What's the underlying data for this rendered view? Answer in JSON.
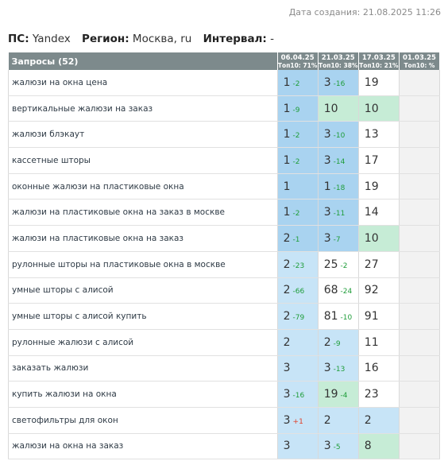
{
  "created_label": "Дата создания: 21.08.2025 11:26",
  "meta": {
    "ps_label": "ПС:",
    "ps_value": "Yandex",
    "region_label": "Регион:",
    "region_value": "Москва, ru",
    "interval_label": "Интервал:",
    "interval_value": "-"
  },
  "table": {
    "query_header": "Запросы (52)",
    "columns": [
      {
        "date": "06.04.25",
        "top10": "Топ10: 71%"
      },
      {
        "date": "21.03.25",
        "top10": "Топ10: 38%"
      },
      {
        "date": "17.03.25",
        "top10": "Топ10: 21%"
      },
      {
        "date": "01.03.25",
        "top10": "Топ10: %"
      }
    ],
    "rows": [
      {
        "query": "жалюзи на окна цена",
        "cells": [
          {
            "pos": "1",
            "change": "-2",
            "dir": "up",
            "bg": "b1"
          },
          {
            "pos": "3",
            "change": "-16",
            "dir": "up",
            "bg": "b1"
          },
          {
            "pos": "19",
            "change": "",
            "dir": "",
            "bg": "n"
          },
          {
            "pos": "",
            "change": "",
            "dir": "",
            "bg": "e"
          }
        ]
      },
      {
        "query": "вертикальные жалюзи на заказ",
        "cells": [
          {
            "pos": "1",
            "change": "-9",
            "dir": "up",
            "bg": "b1"
          },
          {
            "pos": "10",
            "change": "",
            "dir": "",
            "bg": "g"
          },
          {
            "pos": "10",
            "change": "",
            "dir": "",
            "bg": "g"
          },
          {
            "pos": "",
            "change": "",
            "dir": "",
            "bg": "e"
          }
        ]
      },
      {
        "query": "жалюзи блэкаут",
        "cells": [
          {
            "pos": "1",
            "change": "-2",
            "dir": "up",
            "bg": "b1"
          },
          {
            "pos": "3",
            "change": "-10",
            "dir": "up",
            "bg": "b1"
          },
          {
            "pos": "13",
            "change": "",
            "dir": "",
            "bg": "n"
          },
          {
            "pos": "",
            "change": "",
            "dir": "",
            "bg": "e"
          }
        ]
      },
      {
        "query": "кассетные шторы",
        "cells": [
          {
            "pos": "1",
            "change": "-2",
            "dir": "up",
            "bg": "b1"
          },
          {
            "pos": "3",
            "change": "-14",
            "dir": "up",
            "bg": "b1"
          },
          {
            "pos": "17",
            "change": "",
            "dir": "",
            "bg": "n"
          },
          {
            "pos": "",
            "change": "",
            "dir": "",
            "bg": "e"
          }
        ]
      },
      {
        "query": "оконные жалюзи на пластиковые окна",
        "cells": [
          {
            "pos": "1",
            "change": "",
            "dir": "",
            "bg": "b1"
          },
          {
            "pos": "1",
            "change": "-18",
            "dir": "up",
            "bg": "b1"
          },
          {
            "pos": "19",
            "change": "",
            "dir": "",
            "bg": "n"
          },
          {
            "pos": "",
            "change": "",
            "dir": "",
            "bg": "e"
          }
        ]
      },
      {
        "query": "жалюзи на пластиковые окна на заказ в москве",
        "cells": [
          {
            "pos": "1",
            "change": "-2",
            "dir": "up",
            "bg": "b1"
          },
          {
            "pos": "3",
            "change": "-11",
            "dir": "up",
            "bg": "b1"
          },
          {
            "pos": "14",
            "change": "",
            "dir": "",
            "bg": "n"
          },
          {
            "pos": "",
            "change": "",
            "dir": "",
            "bg": "e"
          }
        ]
      },
      {
        "query": "жалюзи на пластиковые окна на заказ",
        "cells": [
          {
            "pos": "2",
            "change": "-1",
            "dir": "up",
            "bg": "b1"
          },
          {
            "pos": "3",
            "change": "-7",
            "dir": "up",
            "bg": "b1"
          },
          {
            "pos": "10",
            "change": "",
            "dir": "",
            "bg": "g"
          },
          {
            "pos": "",
            "change": "",
            "dir": "",
            "bg": "e"
          }
        ]
      },
      {
        "query": "рулонные шторы на пластиковые окна в москве",
        "cells": [
          {
            "pos": "2",
            "change": "-23",
            "dir": "up",
            "bg": "b2"
          },
          {
            "pos": "25",
            "change": "-2",
            "dir": "up",
            "bg": "n"
          },
          {
            "pos": "27",
            "change": "",
            "dir": "",
            "bg": "n"
          },
          {
            "pos": "",
            "change": "",
            "dir": "",
            "bg": "e"
          }
        ]
      },
      {
        "query": "умные шторы с алисой",
        "cells": [
          {
            "pos": "2",
            "change": "-66",
            "dir": "up",
            "bg": "b2"
          },
          {
            "pos": "68",
            "change": "-24",
            "dir": "up",
            "bg": "n"
          },
          {
            "pos": "92",
            "change": "",
            "dir": "",
            "bg": "n"
          },
          {
            "pos": "",
            "change": "",
            "dir": "",
            "bg": "e"
          }
        ]
      },
      {
        "query": "умные шторы с алисой купить",
        "cells": [
          {
            "pos": "2",
            "change": "-79",
            "dir": "up",
            "bg": "b2"
          },
          {
            "pos": "81",
            "change": "-10",
            "dir": "up",
            "bg": "n"
          },
          {
            "pos": "91",
            "change": "",
            "dir": "",
            "bg": "n"
          },
          {
            "pos": "",
            "change": "",
            "dir": "",
            "bg": "e"
          }
        ]
      },
      {
        "query": "рулонные жалюзи с алисой",
        "cells": [
          {
            "pos": "2",
            "change": "",
            "dir": "",
            "bg": "b2"
          },
          {
            "pos": "2",
            "change": "-9",
            "dir": "up",
            "bg": "b2"
          },
          {
            "pos": "11",
            "change": "",
            "dir": "",
            "bg": "n"
          },
          {
            "pos": "",
            "change": "",
            "dir": "",
            "bg": "e"
          }
        ]
      },
      {
        "query": "заказать жалюзи",
        "cells": [
          {
            "pos": "3",
            "change": "",
            "dir": "",
            "bg": "b2"
          },
          {
            "pos": "3",
            "change": "-13",
            "dir": "up",
            "bg": "b2"
          },
          {
            "pos": "16",
            "change": "",
            "dir": "",
            "bg": "n"
          },
          {
            "pos": "",
            "change": "",
            "dir": "",
            "bg": "e"
          }
        ]
      },
      {
        "query": "купить жалюзи на окна",
        "cells": [
          {
            "pos": "3",
            "change": "-16",
            "dir": "up",
            "bg": "b2"
          },
          {
            "pos": "19",
            "change": "-4",
            "dir": "up",
            "bg": "g"
          },
          {
            "pos": "23",
            "change": "",
            "dir": "",
            "bg": "n"
          },
          {
            "pos": "",
            "change": "",
            "dir": "",
            "bg": "e"
          }
        ]
      },
      {
        "query": "светофильтры для окон",
        "cells": [
          {
            "pos": "3",
            "change": "+1",
            "dir": "down",
            "bg": "b2"
          },
          {
            "pos": "2",
            "change": "",
            "dir": "",
            "bg": "b2"
          },
          {
            "pos": "2",
            "change": "",
            "dir": "",
            "bg": "b2"
          },
          {
            "pos": "",
            "change": "",
            "dir": "",
            "bg": "e"
          }
        ]
      },
      {
        "query": "жалюзи на окна на заказ",
        "cells": [
          {
            "pos": "3",
            "change": "",
            "dir": "",
            "bg": "b2"
          },
          {
            "pos": "3",
            "change": "-5",
            "dir": "up",
            "bg": "b2"
          },
          {
            "pos": "8",
            "change": "",
            "dir": "",
            "bg": "g"
          },
          {
            "pos": "",
            "change": "",
            "dir": "",
            "bg": "e"
          }
        ]
      }
    ]
  }
}
